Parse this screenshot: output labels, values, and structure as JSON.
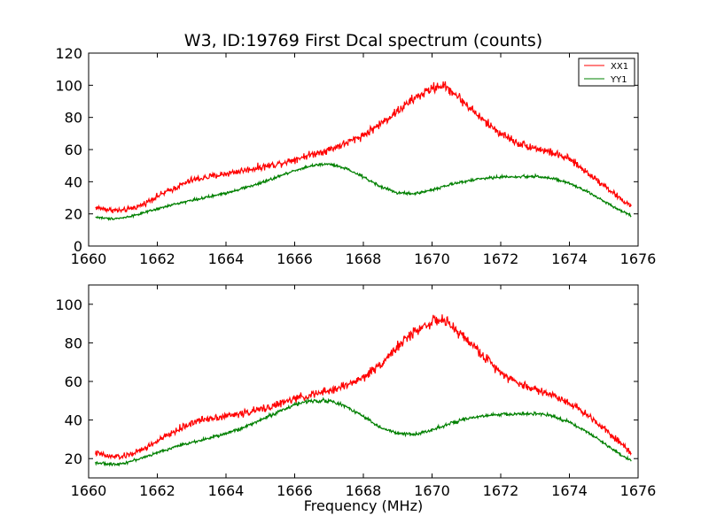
{
  "chart_data": [
    {
      "type": "line",
      "title": "W3, ID:19769 First Dcal spectrum (counts)",
      "xlabel": "",
      "ylabel": "",
      "xlim": [
        1660,
        1676
      ],
      "ylim": [
        0,
        120
      ],
      "xticks": [
        1660,
        1662,
        1664,
        1666,
        1668,
        1670,
        1672,
        1674,
        1676
      ],
      "yticks": [
        0,
        20,
        40,
        60,
        80,
        100,
        120
      ],
      "grid": false,
      "legend": "top-right",
      "x_range": [
        1660.2,
        1675.8
      ],
      "series": [
        {
          "name": "XX1",
          "color": "#ff0000",
          "noise": 3.0,
          "profile": [
            [
              1660.2,
              24
            ],
            [
              1660.6,
              22.5
            ],
            [
              1661.0,
              22
            ],
            [
              1661.5,
              25
            ],
            [
              1662.0,
              31
            ],
            [
              1662.5,
              36
            ],
            [
              1663.0,
              41
            ],
            [
              1663.5,
              43
            ],
            [
              1664.0,
              45
            ],
            [
              1664.5,
              47
            ],
            [
              1665.0,
              49
            ],
            [
              1665.5,
              51
            ],
            [
              1666.0,
              54
            ],
            [
              1666.5,
              57
            ],
            [
              1667.0,
              60
            ],
            [
              1667.5,
              64
            ],
            [
              1668.0,
              69
            ],
            [
              1668.5,
              76
            ],
            [
              1669.0,
              84
            ],
            [
              1669.5,
              92
            ],
            [
              1670.0,
              98
            ],
            [
              1670.3,
              100
            ],
            [
              1670.6,
              96
            ],
            [
              1671.0,
              88
            ],
            [
              1671.5,
              78
            ],
            [
              1672.0,
              70
            ],
            [
              1672.5,
              64
            ],
            [
              1673.0,
              61
            ],
            [
              1673.5,
              58
            ],
            [
              1674.0,
              54
            ],
            [
              1674.5,
              46
            ],
            [
              1675.0,
              38
            ],
            [
              1675.5,
              29
            ],
            [
              1675.8,
              25
            ]
          ]
        },
        {
          "name": "YY1",
          "color": "#008000",
          "noise": 1.3,
          "profile": [
            [
              1660.2,
              18
            ],
            [
              1660.6,
              17
            ],
            [
              1661.0,
              17.5
            ],
            [
              1661.5,
              20
            ],
            [
              1662.0,
              23
            ],
            [
              1662.5,
              26
            ],
            [
              1663.0,
              28.5
            ],
            [
              1663.5,
              30.5
            ],
            [
              1664.0,
              33
            ],
            [
              1664.5,
              36
            ],
            [
              1665.0,
              39
            ],
            [
              1665.5,
              43
            ],
            [
              1666.0,
              47
            ],
            [
              1666.5,
              50
            ],
            [
              1667.0,
              51
            ],
            [
              1667.5,
              48
            ],
            [
              1668.0,
              43
            ],
            [
              1668.5,
              37
            ],
            [
              1669.0,
              33
            ],
            [
              1669.5,
              32.5
            ],
            [
              1670.0,
              35
            ],
            [
              1670.5,
              38
            ],
            [
              1671.0,
              40.5
            ],
            [
              1671.5,
              42
            ],
            [
              1672.0,
              43
            ],
            [
              1672.5,
              43
            ],
            [
              1673.0,
              43.5
            ],
            [
              1673.5,
              42
            ],
            [
              1674.0,
              39
            ],
            [
              1674.5,
              34
            ],
            [
              1675.0,
              28
            ],
            [
              1675.5,
              22
            ],
            [
              1675.8,
              19
            ]
          ]
        }
      ]
    },
    {
      "type": "line",
      "title": "",
      "xlabel": "Frequency (MHz)",
      "ylabel": "",
      "xlim": [
        1660,
        1676
      ],
      "ylim": [
        10,
        110
      ],
      "xticks": [
        1660,
        1662,
        1664,
        1666,
        1668,
        1670,
        1672,
        1674,
        1676
      ],
      "yticks": [
        20,
        40,
        60,
        80,
        100
      ],
      "grid": false,
      "legend": "none",
      "x_range": [
        1660.2,
        1675.8
      ],
      "series": [
        {
          "color": "#ff0000",
          "noise": 2.8,
          "profile": [
            [
              1660.2,
              23
            ],
            [
              1660.6,
              21
            ],
            [
              1661.0,
              21
            ],
            [
              1661.5,
              24
            ],
            [
              1662.0,
              29
            ],
            [
              1662.5,
              34
            ],
            [
              1663.0,
              38.5
            ],
            [
              1663.5,
              41
            ],
            [
              1664.0,
              42
            ],
            [
              1664.5,
              43.5
            ],
            [
              1665.0,
              45.5
            ],
            [
              1665.5,
              48
            ],
            [
              1666.0,
              51
            ],
            [
              1666.5,
              53
            ],
            [
              1667.0,
              55
            ],
            [
              1667.5,
              58
            ],
            [
              1668.0,
              62
            ],
            [
              1668.5,
              69
            ],
            [
              1669.0,
              78
            ],
            [
              1669.5,
              86
            ],
            [
              1670.0,
              91
            ],
            [
              1670.3,
              92
            ],
            [
              1670.6,
              88
            ],
            [
              1671.0,
              82
            ],
            [
              1671.5,
              73
            ],
            [
              1672.0,
              65
            ],
            [
              1672.5,
              59
            ],
            [
              1673.0,
              56
            ],
            [
              1673.5,
              53
            ],
            [
              1674.0,
              49
            ],
            [
              1674.5,
              43
            ],
            [
              1675.0,
              36
            ],
            [
              1675.5,
              28
            ],
            [
              1675.8,
              23
            ]
          ]
        },
        {
          "color": "#008000",
          "noise": 1.3,
          "profile": [
            [
              1660.2,
              18
            ],
            [
              1660.6,
              17
            ],
            [
              1661.0,
              17.5
            ],
            [
              1661.5,
              20
            ],
            [
              1662.0,
              23
            ],
            [
              1662.5,
              26
            ],
            [
              1663.0,
              28.5
            ],
            [
              1663.5,
              30.5
            ],
            [
              1664.0,
              33
            ],
            [
              1664.5,
              36
            ],
            [
              1665.0,
              40
            ],
            [
              1665.5,
              44
            ],
            [
              1666.0,
              48
            ],
            [
              1666.5,
              50
            ],
            [
              1667.0,
              50
            ],
            [
              1667.5,
              47
            ],
            [
              1668.0,
              42
            ],
            [
              1668.5,
              36
            ],
            [
              1669.0,
              33
            ],
            [
              1669.5,
              32.5
            ],
            [
              1670.0,
              35
            ],
            [
              1670.5,
              38
            ],
            [
              1671.0,
              40.5
            ],
            [
              1671.5,
              42
            ],
            [
              1672.0,
              43
            ],
            [
              1672.5,
              43
            ],
            [
              1673.0,
              43.5
            ],
            [
              1673.5,
              42
            ],
            [
              1674.0,
              39
            ],
            [
              1674.5,
              34
            ],
            [
              1675.0,
              28
            ],
            [
              1675.5,
              22
            ],
            [
              1675.8,
              19
            ]
          ]
        }
      ]
    }
  ]
}
